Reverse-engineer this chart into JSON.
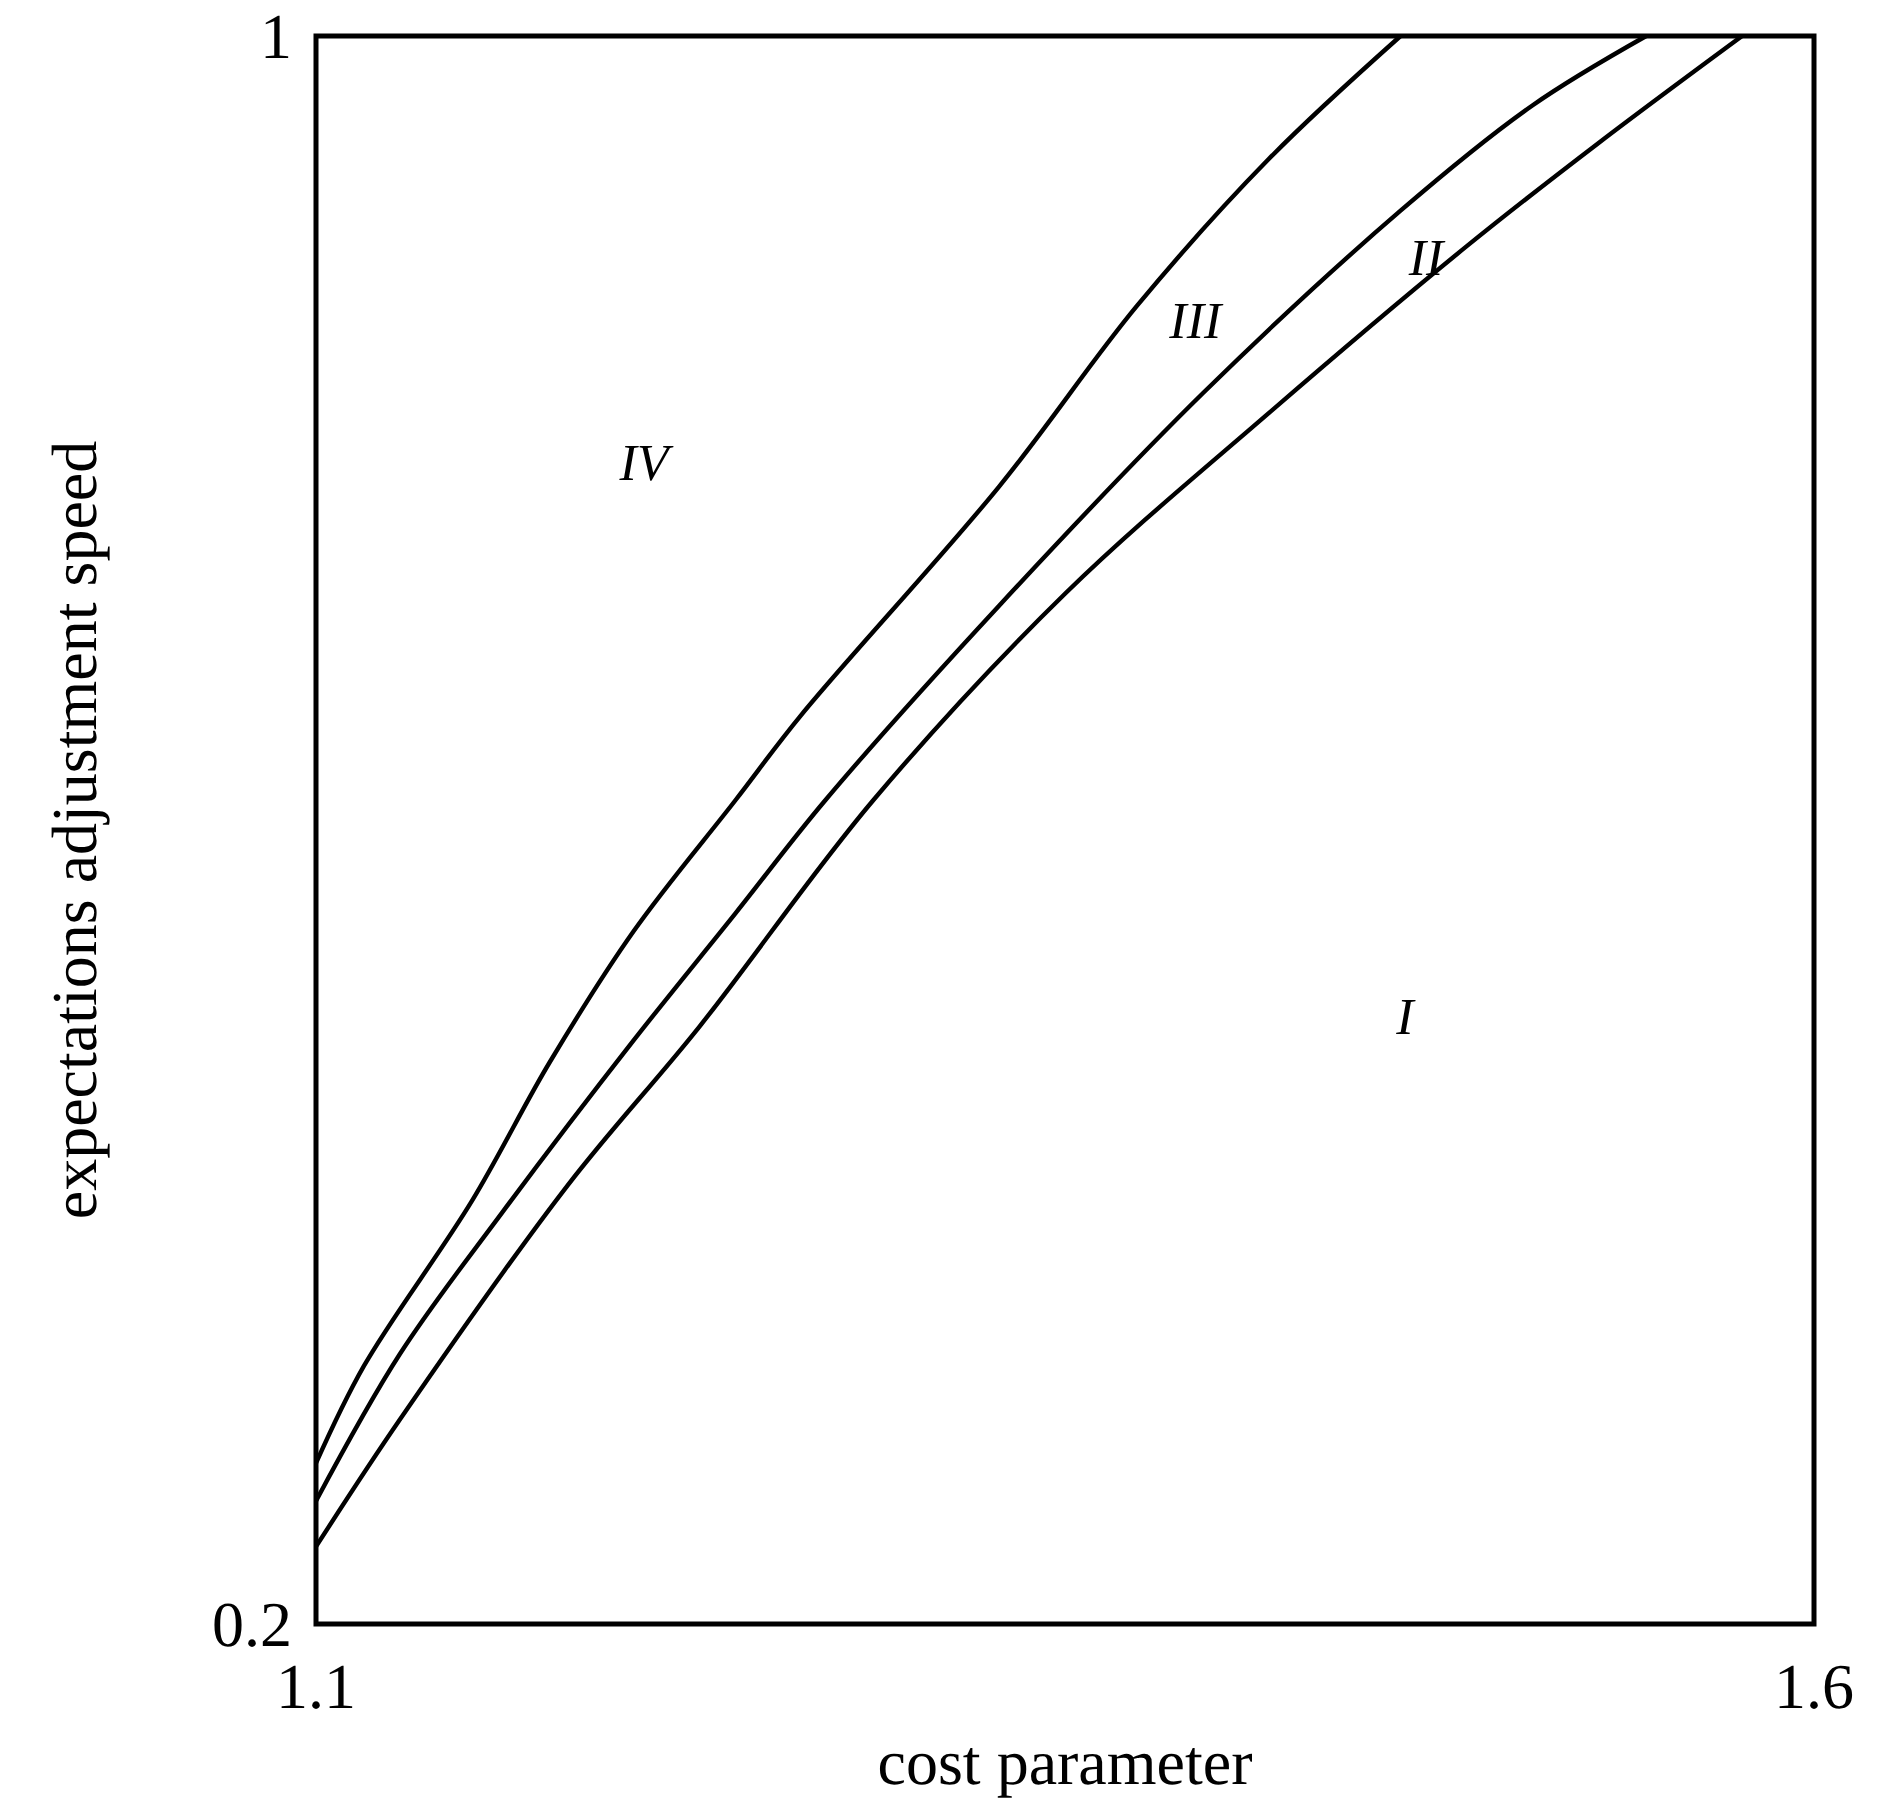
{
  "chart_data": {
    "type": "line",
    "xlabel": "cost parameter",
    "ylabel": "expectations adjustment speed",
    "xlim": [
      1.1,
      1.6
    ],
    "ylim": [
      0.2,
      1
    ],
    "xticks": [
      1.1,
      1.6
    ],
    "yticks": [
      0.2,
      1
    ],
    "marker": "none",
    "line_style": "solid",
    "series": [
      {
        "color": "#000000",
        "x": [
          1.1,
          1.116,
          1.152,
          1.178,
          1.206,
          1.24,
          1.262,
          1.328,
          1.374,
          1.418,
          1.462
        ],
        "values": [
          0.281,
          0.33,
          0.413,
          0.483,
          0.549,
          0.615,
          0.658,
          0.773,
          0.864,
          0.938,
          1.0
        ]
      },
      {
        "color": "#000000",
        "x": [
          1.1,
          1.128,
          1.162,
          1.206,
          1.24,
          1.27,
          1.328,
          1.396,
          1.462,
          1.506,
          1.544
        ],
        "values": [
          0.262,
          0.336,
          0.407,
          0.494,
          0.558,
          0.615,
          0.713,
          0.82,
          0.912,
          0.965,
          1.0
        ]
      },
      {
        "color": "#000000",
        "x": [
          1.1,
          1.128,
          1.184,
          1.228,
          1.286,
          1.35,
          1.418,
          1.484,
          1.528,
          1.576
        ],
        "values": [
          0.239,
          0.303,
          0.421,
          0.501,
          0.615,
          0.719,
          0.81,
          0.894,
          0.946,
          1.0
        ]
      }
    ],
    "annotations": [
      "IV",
      "III",
      "II",
      "I"
    ]
  }
}
